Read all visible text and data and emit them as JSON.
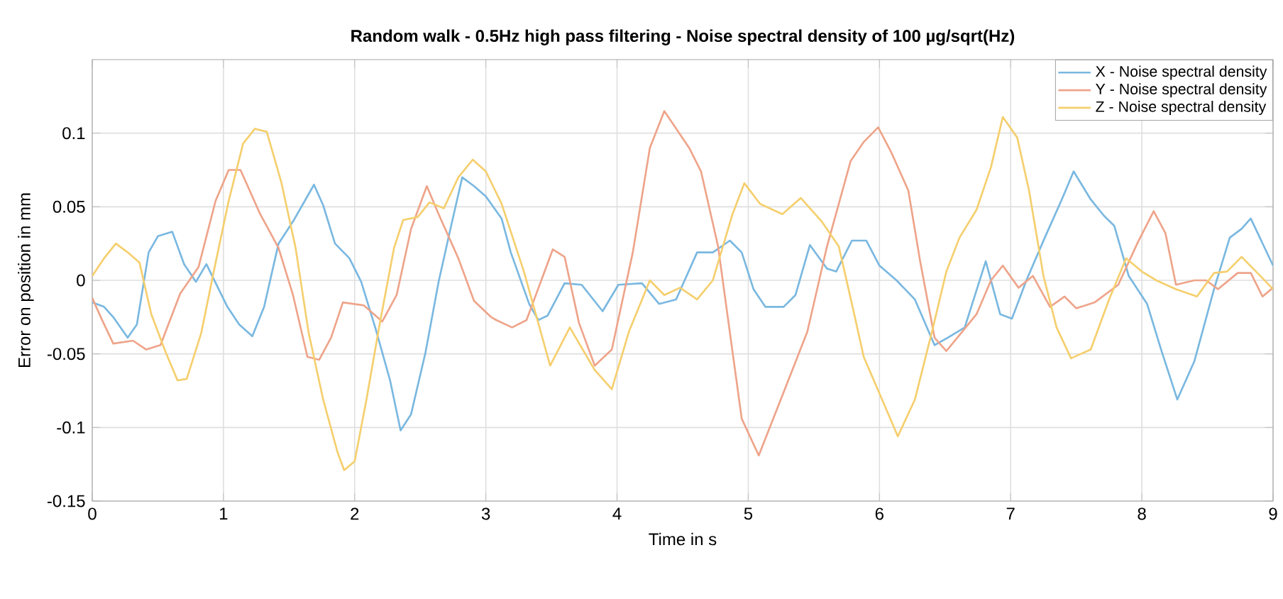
{
  "chart_data": {
    "type": "line",
    "title": "Random walk - 0.5Hz high pass filtering - Noise spectral density of 100 µg/sqrt(Hz)",
    "xlabel": "Time in s",
    "ylabel": "Error on position in mm",
    "xlim": [
      0,
      9
    ],
    "ylim": [
      -0.15,
      0.15
    ],
    "xticks": [
      0,
      1,
      2,
      3,
      4,
      5,
      6,
      7,
      8,
      9
    ],
    "yticks": [
      -0.15,
      -0.1,
      -0.05,
      0,
      0.05,
      0.1
    ],
    "grid": true,
    "legend": "top right",
    "series": [
      {
        "name": "X - Noise spectral density",
        "color": "#7ab8e0",
        "x": [
          0,
          0.09,
          0.16,
          0.27,
          0.34,
          0.43,
          0.5,
          0.61,
          0.7,
          0.79,
          0.87,
          1.03,
          1.12,
          1.22,
          1.31,
          1.42,
          1.53,
          1.62,
          1.69,
          1.76,
          1.85,
          1.96,
          2.05,
          2.16,
          2.27,
          2.35,
          2.43,
          2.54,
          2.64,
          2.73,
          2.82,
          2.91,
          3.0,
          3.12,
          3.19,
          3.33,
          3.4,
          3.47,
          3.6,
          3.73,
          3.89,
          4.01,
          4.19,
          4.32,
          4.45,
          4.61,
          4.73,
          4.86,
          4.95,
          5.04,
          5.13,
          5.27,
          5.36,
          5.47,
          5.6,
          5.67,
          5.79,
          5.9,
          6.0,
          6.13,
          6.27,
          6.42,
          6.52,
          6.65,
          6.81,
          6.92,
          7.01,
          7.12,
          7.26,
          7.39,
          7.48,
          7.61,
          7.71,
          7.79,
          7.9,
          8.04,
          8.15,
          8.27,
          8.4,
          8.55,
          8.67,
          8.76,
          8.83,
          9.0
        ],
        "values": [
          -0.015,
          -0.018,
          -0.025,
          -0.039,
          -0.03,
          0.019,
          0.03,
          0.033,
          0.011,
          -0.001,
          0.011,
          -0.018,
          -0.03,
          -0.038,
          -0.018,
          0.025,
          0.04,
          0.054,
          0.065,
          0.051,
          0.025,
          0.015,
          -0.001,
          -0.033,
          -0.068,
          -0.102,
          -0.091,
          -0.049,
          -0.001,
          0.035,
          0.07,
          0.064,
          0.057,
          0.042,
          0.019,
          -0.016,
          -0.027,
          -0.024,
          -0.002,
          -0.003,
          -0.021,
          -0.003,
          -0.002,
          -0.016,
          -0.013,
          0.019,
          0.019,
          0.027,
          0.019,
          -0.006,
          -0.018,
          -0.018,
          -0.01,
          0.024,
          0.008,
          0.006,
          0.027,
          0.027,
          0.01,
          0,
          -0.013,
          -0.044,
          -0.039,
          -0.032,
          0.013,
          -0.023,
          -0.026,
          0,
          0.029,
          0.055,
          0.074,
          0.055,
          0.044,
          0.037,
          0.003,
          -0.016,
          -0.048,
          -0.081,
          -0.055,
          -0.006,
          0.029,
          0.035,
          0.042,
          0.01
        ]
      },
      {
        "name": "Y - Noise spectral density",
        "color": "#eea48a",
        "x": [
          0,
          0.07,
          0.16,
          0.31,
          0.41,
          0.52,
          0.67,
          0.81,
          0.94,
          1.04,
          1.13,
          1.28,
          1.42,
          1.53,
          1.64,
          1.73,
          1.82,
          1.91,
          2.07,
          2.21,
          2.32,
          2.43,
          2.55,
          2.64,
          2.79,
          2.91,
          3.04,
          3.08,
          3.2,
          3.31,
          3.51,
          3.6,
          3.71,
          3.83,
          3.96,
          4.12,
          4.25,
          4.36,
          4.55,
          4.64,
          4.77,
          4.95,
          5.08,
          5.27,
          5.45,
          5.6,
          5.78,
          5.88,
          5.99,
          6.09,
          6.22,
          6.31,
          6.42,
          6.51,
          6.63,
          6.74,
          6.85,
          6.94,
          7.06,
          7.17,
          7.3,
          7.41,
          7.5,
          7.64,
          7.82,
          7.97,
          8.09,
          8.18,
          8.26,
          8.4,
          8.49,
          8.58,
          8.73,
          8.83,
          8.92,
          9.0
        ],
        "values": [
          -0.012,
          -0.026,
          -0.043,
          -0.041,
          -0.047,
          -0.044,
          -0.009,
          0.009,
          0.054,
          0.075,
          0.075,
          0.045,
          0.022,
          -0.01,
          -0.052,
          -0.054,
          -0.039,
          -0.015,
          -0.017,
          -0.028,
          -0.01,
          0.035,
          0.064,
          0.045,
          0.015,
          -0.014,
          -0.025,
          -0.027,
          -0.032,
          -0.027,
          0.021,
          0.016,
          -0.029,
          -0.058,
          -0.047,
          0.019,
          0.09,
          0.115,
          0.09,
          0.074,
          0.023,
          -0.094,
          -0.119,
          -0.076,
          -0.035,
          0.023,
          0.081,
          0.094,
          0.104,
          0.087,
          0.061,
          0.013,
          -0.039,
          -0.048,
          -0.035,
          -0.023,
          0,
          0.01,
          -0.005,
          0.003,
          -0.018,
          -0.011,
          -0.019,
          -0.015,
          -0.003,
          0.026,
          0.047,
          0.032,
          -0.003,
          0,
          0,
          -0.006,
          0.005,
          0.005,
          -0.011,
          -0.005
        ]
      },
      {
        "name": "Z - Noise spectral density",
        "color": "#f5cf6e",
        "x": [
          0,
          0.09,
          0.18,
          0.27,
          0.36,
          0.45,
          0.56,
          0.65,
          0.72,
          0.83,
          0.94,
          1.04,
          1.15,
          1.24,
          1.33,
          1.44,
          1.55,
          1.65,
          1.76,
          1.87,
          1.92,
          2.0,
          2.09,
          2.19,
          2.3,
          2.37,
          2.48,
          2.57,
          2.68,
          2.79,
          2.9,
          3.0,
          3.12,
          3.29,
          3.49,
          3.64,
          3.83,
          3.96,
          4.09,
          4.25,
          4.36,
          4.48,
          4.61,
          4.73,
          4.88,
          4.97,
          5.09,
          5.26,
          5.4,
          5.56,
          5.69,
          5.79,
          5.88,
          6.02,
          6.14,
          6.27,
          6.4,
          6.51,
          6.61,
          6.74,
          6.85,
          6.94,
          7.05,
          7.14,
          7.25,
          7.35,
          7.46,
          7.61,
          7.75,
          7.88,
          8.0,
          8.11,
          8.26,
          8.42,
          8.55,
          8.65,
          8.76,
          8.87,
          9.0
        ],
        "values": [
          0.003,
          0.015,
          0.025,
          0.019,
          0.012,
          -0.023,
          -0.049,
          -0.068,
          -0.067,
          -0.036,
          0.012,
          0.054,
          0.093,
          0.103,
          0.101,
          0.067,
          0.022,
          -0.036,
          -0.081,
          -0.117,
          -0.129,
          -0.123,
          -0.081,
          -0.03,
          0.022,
          0.041,
          0.043,
          0.053,
          0.049,
          0.07,
          0.082,
          0.074,
          0.052,
          0.006,
          -0.058,
          -0.032,
          -0.061,
          -0.074,
          -0.035,
          0,
          -0.01,
          -0.005,
          -0.013,
          0,
          0.045,
          0.066,
          0.052,
          0.045,
          0.056,
          0.04,
          0.023,
          -0.016,
          -0.052,
          -0.081,
          -0.106,
          -0.081,
          -0.035,
          0.006,
          0.029,
          0.048,
          0.077,
          0.111,
          0.097,
          0.061,
          0.003,
          -0.032,
          -0.053,
          -0.047,
          -0.013,
          0.015,
          0.006,
          0,
          -0.006,
          -0.011,
          0.005,
          0.006,
          0.016,
          0.006,
          -0.006
        ]
      }
    ]
  }
}
